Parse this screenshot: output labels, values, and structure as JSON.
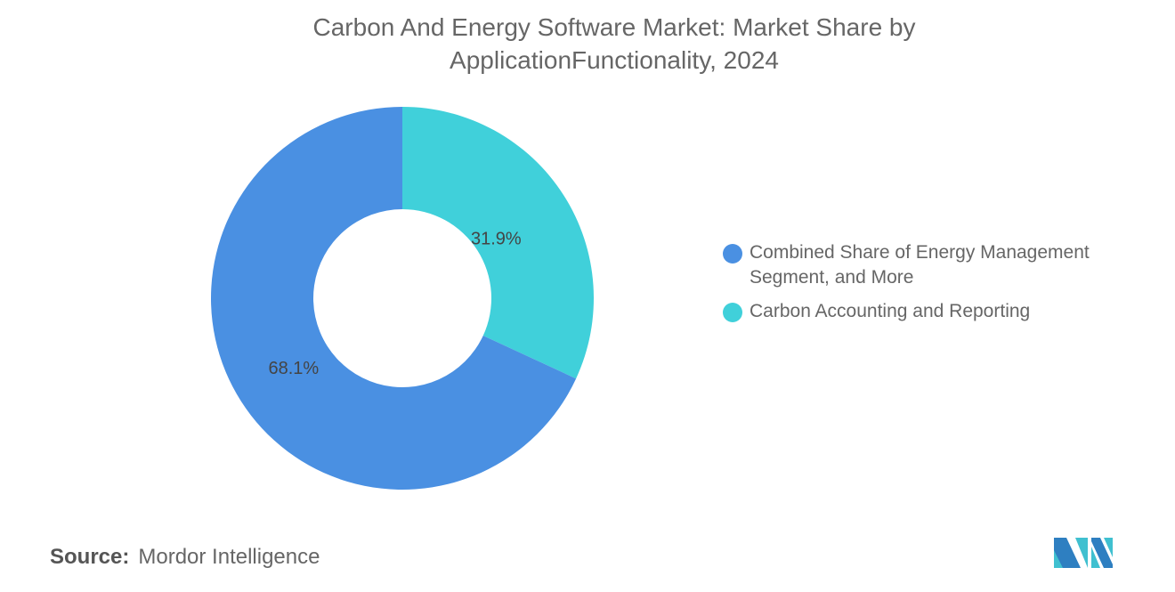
{
  "title": "Carbon And Energy Software Market: Market Share by ApplicationFunctionality, 2024",
  "chart_data": {
    "type": "pie",
    "donut": true,
    "title": "Carbon And Energy Software Market: Market Share by ApplicationFunctionality, 2024",
    "categories": [
      "Carbon Accounting and Reporting",
      "Combined Share of Energy Management Segment, and More"
    ],
    "values": [
      31.9,
      68.1
    ],
    "labels": [
      "31.9%",
      "68.1%"
    ],
    "colors": [
      "#40d0da",
      "#4a90e2"
    ],
    "legend_position": "right"
  },
  "legend": [
    {
      "label": "Combined Share of Energy Management Segment, and More",
      "color": "#4a90e2"
    },
    {
      "label": "Carbon Accounting and Reporting",
      "color": "#40d0da"
    }
  ],
  "source": {
    "label": "Source:",
    "value": "Mordor Intelligence"
  },
  "logo_text": "Mordor Intelligence"
}
